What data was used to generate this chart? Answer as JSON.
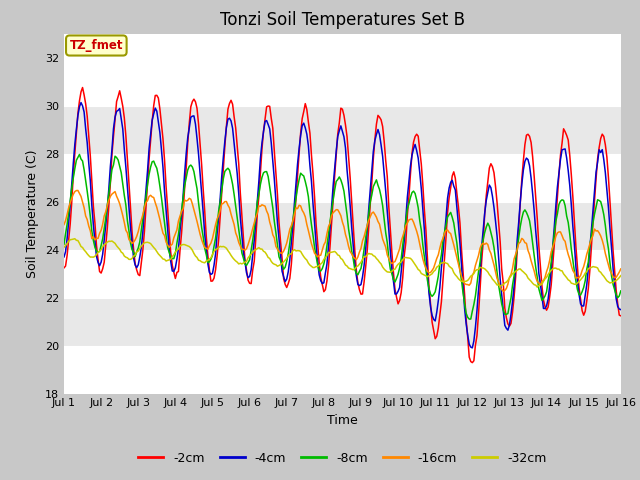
{
  "title": "Tonzi Soil Temperatures Set B",
  "xlabel": "Time",
  "ylabel": "Soil Temperature (C)",
  "annotation": "TZ_fmet",
  "ylim": [
    18,
    33
  ],
  "yticks": [
    18,
    20,
    22,
    24,
    26,
    28,
    30,
    32
  ],
  "xlim": [
    0,
    360
  ],
  "xtick_positions": [
    0,
    24,
    48,
    72,
    96,
    120,
    144,
    168,
    192,
    216,
    240,
    264,
    288,
    312,
    336,
    360
  ],
  "xtick_labels": [
    "Jul 1",
    "Jul 2",
    "Jul 3",
    "Jul 4",
    "Jul 5",
    "Jul 6",
    "Jul 7",
    "Jul 8",
    "Jul 9",
    "Jul 10",
    "Jul 11",
    "Jul 12",
    "Jul 13",
    "Jul 14",
    "Jul 15",
    "Jul 16"
  ],
  "series_colors": [
    "#ff0000",
    "#0000cc",
    "#00bb00",
    "#ff8800",
    "#cccc00"
  ],
  "series_labels": [
    "-2cm",
    "-4cm",
    "-8cm",
    "-16cm",
    "-32cm"
  ],
  "title_fontsize": 12,
  "axis_label_fontsize": 9,
  "tick_fontsize": 8,
  "band_colors": [
    "#ffffff",
    "#e8e8e8"
  ],
  "bg_outer": "#d0d0d0"
}
